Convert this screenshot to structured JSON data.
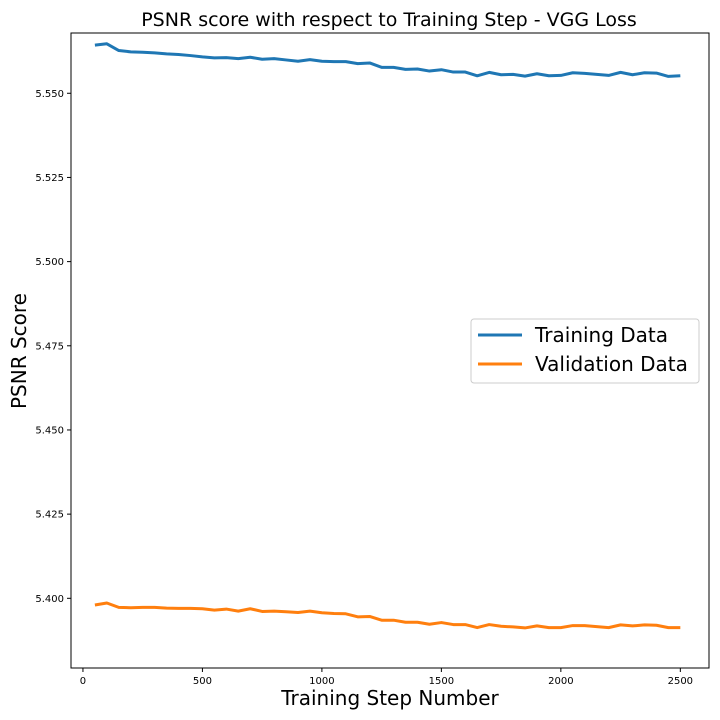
{
  "chart_data": {
    "type": "line",
    "title": "PSNR score with respect to Training Step - VGG Loss",
    "xlabel": "Training Step Number",
    "ylabel": "PSNR Score",
    "xlim": [
      -50,
      2620
    ],
    "ylim": [
      5.3793,
      5.5679
    ],
    "xticks": [
      0,
      500,
      1000,
      1500,
      2000,
      2500
    ],
    "yticks": [
      5.4,
      5.425,
      5.45,
      5.475,
      5.5,
      5.525,
      5.55
    ],
    "ytick_labels": [
      "5.400",
      "5.425",
      "5.450",
      "5.475",
      "5.500",
      "5.525",
      "5.550"
    ],
    "grid": false,
    "legend": "center-right",
    "x": [
      50,
      100,
      150,
      200,
      250,
      300,
      350,
      400,
      450,
      500,
      550,
      600,
      650,
      700,
      750,
      800,
      850,
      900,
      950,
      1000,
      1050,
      1100,
      1150,
      1200,
      1250,
      1300,
      1350,
      1400,
      1450,
      1500,
      1550,
      1600,
      1650,
      1700,
      1750,
      1800,
      1850,
      1900,
      1950,
      2000,
      2050,
      2100,
      2150,
      2200,
      2250,
      2300,
      2350,
      2400,
      2450,
      2500
    ],
    "series": [
      {
        "name": "Training Data",
        "color": "#1f77b4",
        "values": [
          5.5643,
          5.5647,
          5.5627,
          5.5623,
          5.5622,
          5.562,
          5.5617,
          5.5615,
          5.5612,
          5.5608,
          5.5605,
          5.5606,
          5.5603,
          5.5607,
          5.5601,
          5.5603,
          5.5599,
          5.5595,
          5.56,
          5.5595,
          5.5594,
          5.5594,
          5.5588,
          5.559,
          5.5577,
          5.5577,
          5.5571,
          5.5572,
          5.5566,
          5.557,
          5.5563,
          5.5563,
          5.5552,
          5.5562,
          5.5555,
          5.5556,
          5.5551,
          5.5558,
          5.5552,
          5.5553,
          5.5561,
          5.5559,
          5.5556,
          5.5553,
          5.5562,
          5.5555,
          5.5561,
          5.556,
          5.555,
          5.5552
        ]
      },
      {
        "name": "Validation Data",
        "color": "#ff7f0e",
        "values": [
          5.398,
          5.3986,
          5.3973,
          5.3972,
          5.3973,
          5.3973,
          5.3971,
          5.397,
          5.397,
          5.3969,
          5.3965,
          5.3968,
          5.3962,
          5.3969,
          5.3961,
          5.3962,
          5.396,
          5.3958,
          5.3962,
          5.3957,
          5.3955,
          5.3954,
          5.3945,
          5.3946,
          5.3935,
          5.3935,
          5.3929,
          5.3929,
          5.3923,
          5.3928,
          5.3922,
          5.3922,
          5.3913,
          5.3922,
          5.3917,
          5.3915,
          5.3912,
          5.3918,
          5.3913,
          5.3913,
          5.3919,
          5.3919,
          5.3916,
          5.3913,
          5.3921,
          5.3918,
          5.3921,
          5.392,
          5.3913,
          5.3913
        ]
      }
    ]
  }
}
